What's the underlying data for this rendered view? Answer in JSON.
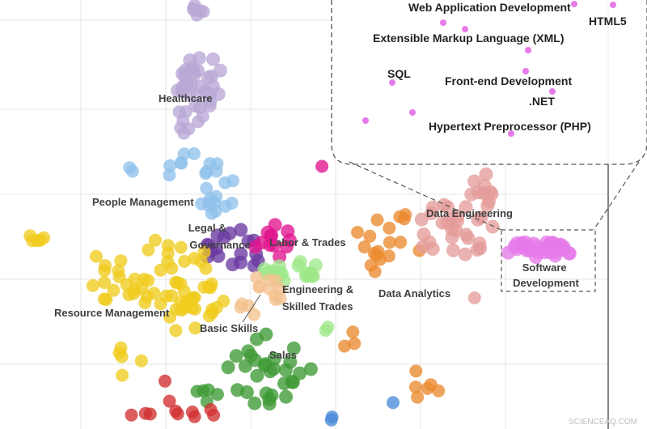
{
  "chart_data": {
    "type": "scatter",
    "title": "",
    "xlabel": "",
    "ylabel": "",
    "grid": true,
    "legend": "none",
    "clusters": [
      {
        "name": "Healthcare",
        "color": "#b8a8d6"
      },
      {
        "name": "People Management",
        "color": "#8fc1ea"
      },
      {
        "name": "Legal & Governance",
        "color": "#6a3aa0"
      },
      {
        "name": "Labor & Trades",
        "color": "#e0148e"
      },
      {
        "name": "Resource Management",
        "color": "#f0cc1d"
      },
      {
        "name": "Engineering & Skilled Trades",
        "color": "#9fe88a"
      },
      {
        "name": "Basic Skills",
        "color": "#f4c28f"
      },
      {
        "name": "Sales",
        "color": "#3e9a35"
      },
      {
        "name": "Data Analytics",
        "color": "#ea8a2f"
      },
      {
        "name": "Data Engineering",
        "color": "#e49c9a"
      },
      {
        "name": "Software Development",
        "color": "#e57ae9"
      },
      {
        "name": "",
        "color": "#d22f2f"
      },
      {
        "name": "",
        "color": "#4a8ad8"
      }
    ],
    "inset": {
      "skills": [
        "Web Application Development",
        "HTML5",
        "Extensible Markup Language (XML)",
        "SQL",
        "Front-end Development",
        ".NET",
        "Hypertext Preprocessor (PHP)"
      ]
    }
  },
  "watermark": "SCIENCEAQ.COM"
}
